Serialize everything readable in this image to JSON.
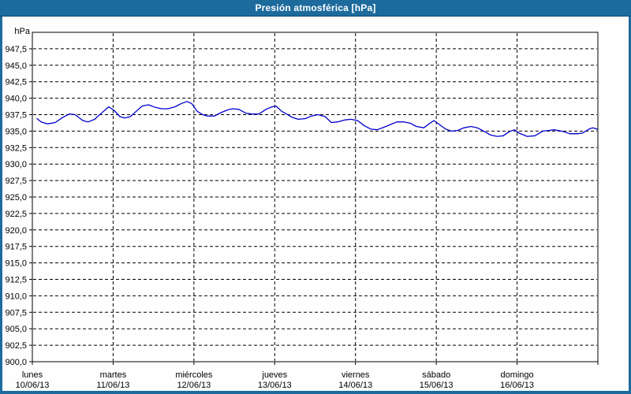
{
  "window": {
    "title": "Presión atmosférica [hPa]"
  },
  "colors": {
    "titlebar_bg": "#1d6b9d",
    "titlebar_border": "#0d4a73",
    "title_text": "#ffffff",
    "frame": "#1d6b9d",
    "plot_background": "#fefefe",
    "grid": "#000000",
    "axis": "#000000",
    "series_line": "#0000cc"
  },
  "chart_data": {
    "type": "line",
    "title": "Presión atmosférica [hPa]",
    "ylabel": "hPa",
    "ylim": [
      900,
      950
    ],
    "ytick_step": 2.5,
    "ytick_labels": [
      "947,5",
      "945,0",
      "942,5",
      "940,0",
      "937,5",
      "935,0",
      "932,5",
      "930,0",
      "927,5",
      "925,0",
      "922,5",
      "920,0",
      "917,5",
      "915,0",
      "912,5",
      "910,0",
      "907,5",
      "905,0",
      "902,5",
      "900,0"
    ],
    "xlim_hours": [
      0,
      168
    ],
    "grid": "dashed",
    "legend": "none",
    "x_axis_days": [
      {
        "weekday": "lunes",
        "date": "10/06/13"
      },
      {
        "weekday": "martes",
        "date": "11/06/13"
      },
      {
        "weekday": "miércoles",
        "date": "12/06/13"
      },
      {
        "weekday": "jueves",
        "date": "13/06/13"
      },
      {
        "weekday": "viernes",
        "date": "14/06/13"
      },
      {
        "weekday": "sábado",
        "date": "15/06/13"
      },
      {
        "weekday": "domingo",
        "date": "16/06/13"
      }
    ],
    "series": [
      {
        "name": "Presión atmosférica",
        "unit": "hPa",
        "color": "#0000cc",
        "points": [
          [
            1.4,
            936.9
          ],
          [
            2.6,
            936.4
          ],
          [
            4.5,
            936.1
          ],
          [
            6.8,
            936.3
          ],
          [
            9.1,
            937.1
          ],
          [
            11.0,
            937.6
          ],
          [
            12.7,
            937.5
          ],
          [
            15.0,
            936.6
          ],
          [
            16.6,
            936.4
          ],
          [
            18.5,
            936.8
          ],
          [
            20.9,
            937.9
          ],
          [
            22.7,
            938.7
          ],
          [
            24.4,
            938.1
          ],
          [
            26.0,
            937.2
          ],
          [
            27.4,
            937.0
          ],
          [
            29.1,
            937.2
          ],
          [
            30.2,
            937.7
          ],
          [
            32.6,
            938.8
          ],
          [
            34.5,
            939.0
          ],
          [
            36.6,
            938.6
          ],
          [
            38.4,
            938.4
          ],
          [
            40.3,
            938.4
          ],
          [
            42.4,
            938.7
          ],
          [
            44.3,
            939.2
          ],
          [
            45.9,
            939.5
          ],
          [
            47.3,
            939.2
          ],
          [
            49.0,
            938.0
          ],
          [
            50.6,
            937.5
          ],
          [
            52.0,
            937.3
          ],
          [
            54.1,
            937.3
          ],
          [
            56.0,
            937.8
          ],
          [
            57.9,
            938.2
          ],
          [
            59.5,
            938.4
          ],
          [
            61.4,
            938.3
          ],
          [
            63.5,
            937.7
          ],
          [
            65.4,
            937.6
          ],
          [
            67.3,
            937.6
          ],
          [
            69.4,
            938.3
          ],
          [
            71.2,
            938.7
          ],
          [
            72.4,
            938.8
          ],
          [
            74.1,
            938.0
          ],
          [
            75.2,
            937.7
          ],
          [
            77.1,
            937.1
          ],
          [
            79.0,
            936.8
          ],
          [
            81.1,
            936.9
          ],
          [
            83.0,
            937.3
          ],
          [
            84.8,
            937.5
          ],
          [
            87.0,
            937.2
          ],
          [
            88.8,
            936.3
          ],
          [
            90.7,
            936.4
          ],
          [
            92.8,
            936.7
          ],
          [
            94.7,
            936.8
          ],
          [
            96.6,
            936.6
          ],
          [
            98.7,
            935.8
          ],
          [
            100.6,
            935.3
          ],
          [
            102.4,
            935.2
          ],
          [
            104.5,
            935.6
          ],
          [
            106.4,
            936.0
          ],
          [
            108.3,
            936.4
          ],
          [
            110.4,
            936.4
          ],
          [
            112.3,
            936.2
          ],
          [
            114.1,
            935.7
          ],
          [
            116.3,
            935.5
          ],
          [
            118.1,
            936.2
          ],
          [
            119.3,
            936.6
          ],
          [
            120.9,
            936.0
          ],
          [
            122.8,
            935.3
          ],
          [
            124.5,
            935.0
          ],
          [
            126.3,
            935.1
          ],
          [
            128.2,
            935.5
          ],
          [
            130.3,
            935.7
          ],
          [
            132.2,
            935.5
          ],
          [
            134.1,
            935.0
          ],
          [
            136.2,
            934.4
          ],
          [
            138.1,
            934.2
          ],
          [
            139.9,
            934.3
          ],
          [
            141.6,
            934.9
          ],
          [
            143.2,
            935.2
          ],
          [
            144.6,
            934.7
          ],
          [
            147.0,
            934.2
          ],
          [
            149.3,
            934.3
          ],
          [
            151.6,
            935.0
          ],
          [
            153.3,
            935.1
          ],
          [
            154.9,
            935.2
          ],
          [
            156.3,
            935.1
          ],
          [
            158.0,
            934.9
          ],
          [
            159.6,
            934.6
          ],
          [
            162.0,
            934.6
          ],
          [
            163.4,
            934.7
          ],
          [
            165.7,
            935.4
          ],
          [
            166.6,
            935.5
          ],
          [
            167.8,
            935.3
          ]
        ]
      }
    ]
  }
}
